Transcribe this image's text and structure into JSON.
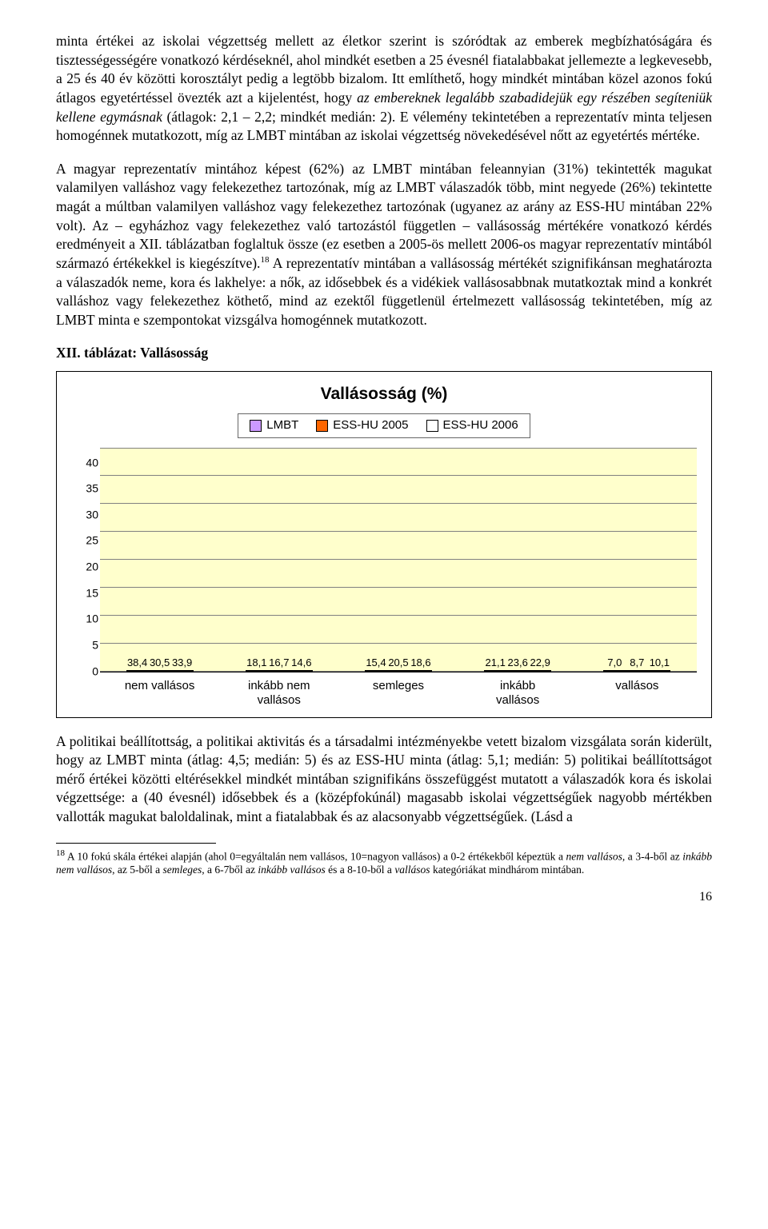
{
  "paragraphs": {
    "p1_a": "minta értékei az iskolai végzettség mellett az életkor szerint is szóródtak az emberek megbízhatóságára és tisztességességére vonatkozó kérdéseknél, ahol mindkét esetben a 25 évesnél fiatalabbakat jellemezte a legkevesebb, a 25 és 40 év közötti korosztályt pedig a legtöbb bizalom. Itt említhető, hogy mindkét mintában közel azonos fokú átlagos egyetértéssel övezték azt a kijelentést, hogy ",
    "p1_italic": "az embereknek legalább szabadidejük egy részében segíteniük kellene egymásnak",
    "p1_b": " (átlagok: 2,1 – 2,2; mindkét medián: 2). E vélemény tekintetében a reprezentatív minta teljesen homogénnek mutatkozott, míg az LMBT mintában az iskolai végzettség növekedésével nőtt az egyetértés mértéke.",
    "p2_a": "A magyar reprezentatív mintához képest (62%) az LMBT mintában feleannyian (31%) tekintették magukat valamilyen valláshoz vagy felekezethez tartozónak, míg az LMBT válaszadók több, mint negyede (26%) tekintette magát a múltban valamilyen valláshoz vagy felekezethez tartozónak (ugyanez az arány az ESS-HU mintában 22% volt). Az – egyházhoz vagy felekezethez való tartozástól független – vallásosság mértékére vonatkozó kérdés eredményeit a XII. táblázatban foglaltuk össze (ez esetben a 2005-ös mellett 2006-os magyar reprezentatív mintából származó értékekkel is kiegészítve).",
    "p2_sup": "18",
    "p2_b": " A reprezentatív mintában a vallásosság mértékét szignifikánsan meghatározta a válaszadók neme, kora és lakhelye: a nők, az idősebbek és a vidékiek vallásosabbnak mutatkoztak mind a konkrét valláshoz vagy felekezethez köthető, mind az ezektől függetlenül értelmezett vallásosság tekintetében, míg az LMBT minta e szempontokat vizsgálva homogénnek mutatkozott.",
    "p3": "A politikai beállítottság, a politikai aktivitás és a társadalmi intézményekbe vetett bizalom vizsgálata során kiderült, hogy az LMBT minta (átlag: 4,5; medián: 5) és az ESS-HU minta (átlag: 5,1; medián: 5) politikai beállítottságot mérő értékei közötti eltérésekkel mindkét mintában szignifikáns összefüggést mutatott a válaszadók kora és iskolai végzettsége: a (40 évesnél) idősebbek és a (középfokúnál) magasabb iskolai végzettségűek nagyobb mértékben vallották magukat baloldalinak, mint a fiatalabbak és az alacsonyabb végzettségűek. (Lásd a"
  },
  "section_title": "XII. táblázat: Vallásosság",
  "chart": {
    "title": "Vallásosság (%)",
    "legend": [
      "LMBT",
      "ESS-HU 2005",
      "ESS-HU 2006"
    ],
    "series_colors": [
      "#cc99ff",
      "#ff6600",
      "#ffffff"
    ],
    "background_color": "#ffffcc",
    "grid_color": "#808080",
    "ylim_max": 40,
    "ytick_step": 5,
    "categories": [
      "nem vallásos",
      "inkább nem\nvallásos",
      "semleges",
      "inkább\nvallásos",
      "vallásos"
    ],
    "values": {
      "LMBT": [
        38.4,
        18.1,
        15.4,
        21.1,
        7.0
      ],
      "ESS-HU 2005": [
        30.5,
        16.7,
        20.5,
        23.6,
        8.7
      ],
      "ESS-HU 2006": [
        33.9,
        14.6,
        18.6,
        22.9,
        10.1
      ]
    },
    "labels": {
      "LMBT": [
        "38,4",
        "18,1",
        "15,4",
        "21,1",
        "7,0"
      ],
      "ESS-HU 2005": [
        "30,5",
        "16,7",
        "20,5",
        "23,6",
        "8,7"
      ],
      "ESS-HU 2006": [
        "33,9",
        "14,6",
        "18,6",
        "22,9",
        "10,1"
      ]
    }
  },
  "footnote": {
    "num": "18",
    "a": " A 10 fokú skála értékei alapján (ahol 0=egyáltalán nem vallásos, 10=nagyon vallásos) a 0-2 értékekből képeztük a ",
    "i1": "nem vallásos",
    "b": ", a 3-4-ből az ",
    "i2": "inkább nem vallásos",
    "c": ", az 5-ből a ",
    "i3": "semleges",
    "d": ", a 6-7ből az ",
    "i4": "inkább vallásos",
    "e": " és a 8-10-ből a ",
    "i5": "vallásos",
    "f": " kategóriákat mindhárom mintában."
  },
  "pagenum": "16"
}
